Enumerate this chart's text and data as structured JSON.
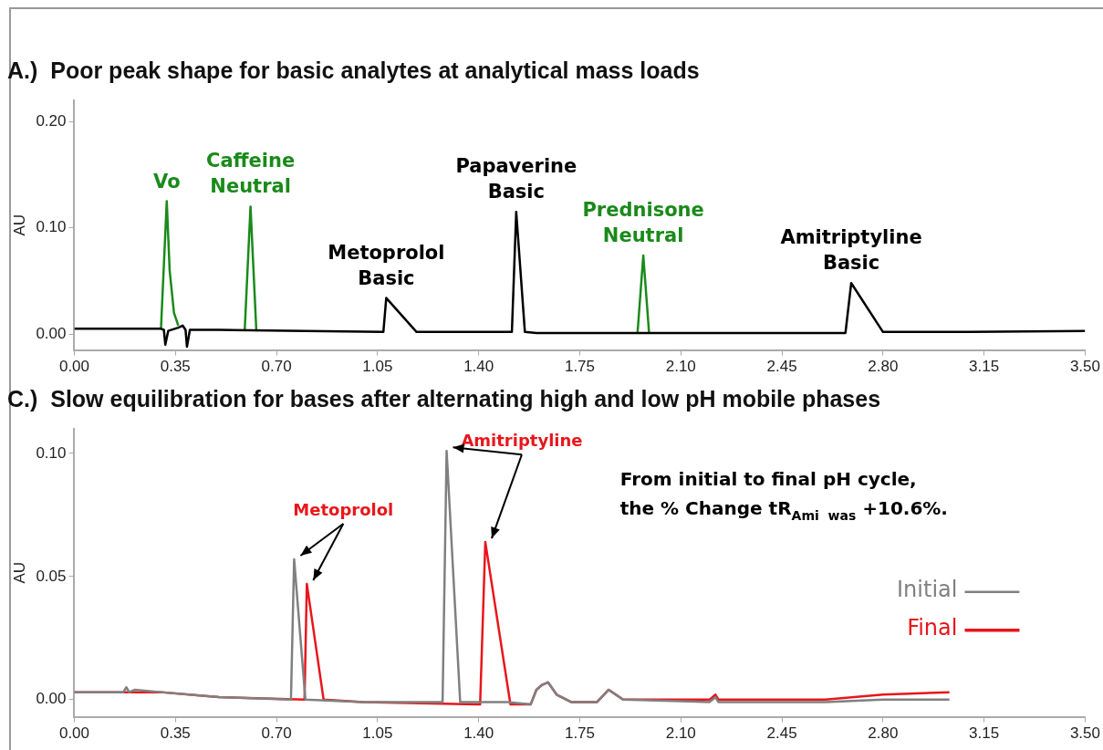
{
  "chart_data": [
    {
      "type": "line",
      "title": "A.)  Poor peak shape for basic analytes at analytical mass loads",
      "ylabel": "AU",
      "xlim": [
        0,
        3.5
      ],
      "xticks": [
        {
          "value": 0,
          "label": "0.00"
        },
        0.35,
        {
          "value": 0.7,
          "label": "0.70"
        },
        1.05,
        {
          "value": 1.4,
          "label": "1.40"
        },
        1.75,
        {
          "value": 2.1,
          "label": "2.10"
        },
        2.45,
        {
          "value": 2.8,
          "label": "2.80"
        },
        3.15,
        {
          "value": 3.5,
          "label": "3.50"
        }
      ],
      "ylim": [
        -0.015,
        0.22
      ],
      "yticks": [
        {
          "value": 0,
          "label": "0.00"
        },
        {
          "value": 0.1,
          "label": "0.10"
        },
        {
          "value": 0.2,
          "label": "0.20"
        }
      ],
      "grid": false,
      "marker": "none",
      "line_style": "solid",
      "series": [
        {
          "color": "#000000",
          "x": [
            0,
            0.3,
            0.31,
            0.315,
            0.325,
            0.36,
            0.375,
            0.385,
            0.39,
            0.4,
            0.5,
            0.8,
            1.07,
            1.08,
            1.185,
            1.3,
            1.515,
            1.53,
            1.56,
            1.6,
            2.0,
            2.4,
            2.67,
            2.69,
            2.8,
            3.1,
            3.5
          ],
          "values": [
            0.005,
            0.005,
            0.004,
            -0.01,
            0.003,
            0.006,
            0.008,
            0.004,
            -0.012,
            0.004,
            0.004,
            0.003,
            0.002,
            0.034,
            0.002,
            0.002,
            0.002,
            0.115,
            0.002,
            0.001,
            0.001,
            0.001,
            0.001,
            0.048,
            0.002,
            0.002,
            0.003
          ]
        },
        {
          "color": "#1a8a1a",
          "x": [
            0.3,
            0.32,
            0.33,
            0.345,
            0.36,
            0.45,
            0.59,
            0.61,
            0.63,
            1.3,
            1.95,
            1.97,
            1.99
          ],
          "values": [
            0.005,
            0.125,
            0.06,
            0.02,
            0.008,
            null,
            0.004,
            0.12,
            0.004,
            null,
            0.001,
            0.074,
            0.001
          ]
        }
      ],
      "annotations": [
        {
          "text": "Vo",
          "x": 0.32,
          "y": 0.125
        },
        {
          "text": "Caffeine\nNeutral",
          "x": 0.61,
          "y": 0.12
        },
        {
          "text": "Metoprolol\nBasic",
          "x": 1.08,
          "y": 0.034
        },
        {
          "text": "Papaverine\nBasic",
          "x": 1.53,
          "y": 0.115
        },
        {
          "text": "Prednisone\nNeutral",
          "x": 1.97,
          "y": 0.074
        },
        {
          "text": "Amitriptyline\nBasic",
          "x": 2.69,
          "y": 0.048
        }
      ]
    },
    {
      "type": "line",
      "title": "C.)  Slow equilibration for bases after alternating high and low pH mobile phases",
      "ylabel": "AU",
      "xlim": [
        0,
        3.5
      ],
      "xticks": [
        {
          "value": 0,
          "label": "0.00"
        },
        0.35,
        {
          "value": 0.7,
          "label": "0.70"
        },
        1.05,
        {
          "value": 1.4,
          "label": "1.40"
        },
        1.75,
        {
          "value": 2.1,
          "label": "2.10"
        },
        2.45,
        {
          "value": 2.8,
          "label": "2.80"
        },
        3.15,
        {
          "value": 3.5,
          "label": "3.50"
        }
      ],
      "ylim": [
        -0.007,
        0.11
      ],
      "yticks": [
        {
          "value": 0,
          "label": "0.00"
        },
        0.05,
        {
          "value": 0.1,
          "label": "0.10"
        }
      ],
      "grid": false,
      "legend": "right",
      "marker": "none",
      "line_style": "solid",
      "series": [
        {
          "name": "Initial",
          "color": "#808080",
          "x": [
            0,
            0.17,
            0.18,
            0.19,
            0.21,
            0.3,
            0.5,
            0.75,
            0.761,
            0.8,
            1.0,
            1.275,
            1.289,
            1.336,
            1.5,
            1.58,
            1.6,
            1.62,
            1.64,
            1.67,
            1.72,
            1.81,
            1.85,
            1.9,
            2.2,
            2.22,
            2.23,
            2.6,
            2.8,
            3.03
          ],
          "values": [
            0.003,
            0.003,
            0.005,
            0.003,
            0.004,
            0.003,
            0.001,
            0.0,
            0.057,
            0.0,
            -0.001,
            -0.001,
            0.101,
            -0.001,
            -0.001,
            -0.002,
            0.004,
            0.006,
            0.007,
            0.002,
            -0.001,
            -0.001,
            0.004,
            0.0,
            -0.001,
            0.001,
            -0.001,
            -0.001,
            0.0,
            0.0
          ]
        },
        {
          "name": "Final",
          "color": "#e8161b",
          "x": [
            0,
            0.3,
            0.5,
            0.797,
            0.805,
            0.863,
            1.0,
            1.405,
            1.423,
            1.51,
            1.58,
            1.6,
            1.62,
            1.64,
            1.67,
            1.72,
            1.81,
            1.85,
            1.9,
            2.2,
            2.22,
            2.23,
            2.6,
            2.8,
            3.03
          ],
          "values": [
            0.003,
            0.003,
            0.001,
            0.0,
            0.047,
            0.0,
            -0.001,
            -0.002,
            0.064,
            -0.002,
            -0.002,
            0.004,
            0.006,
            0.007,
            0.002,
            -0.001,
            -0.001,
            0.004,
            0.0,
            0.0,
            0.002,
            0.0,
            0.0,
            0.002,
            0.003
          ]
        }
      ],
      "annotations": [
        {
          "text": "Metoprolol",
          "x": 0.805,
          "y": 0.047
        },
        {
          "text": "Amitriptyline",
          "x": 1.423,
          "y": 0.064
        },
        "From initial to final pH cycle,",
        "the % Change tR$_{Ami  was}$ +10.6%."
      ]
    }
  ]
}
